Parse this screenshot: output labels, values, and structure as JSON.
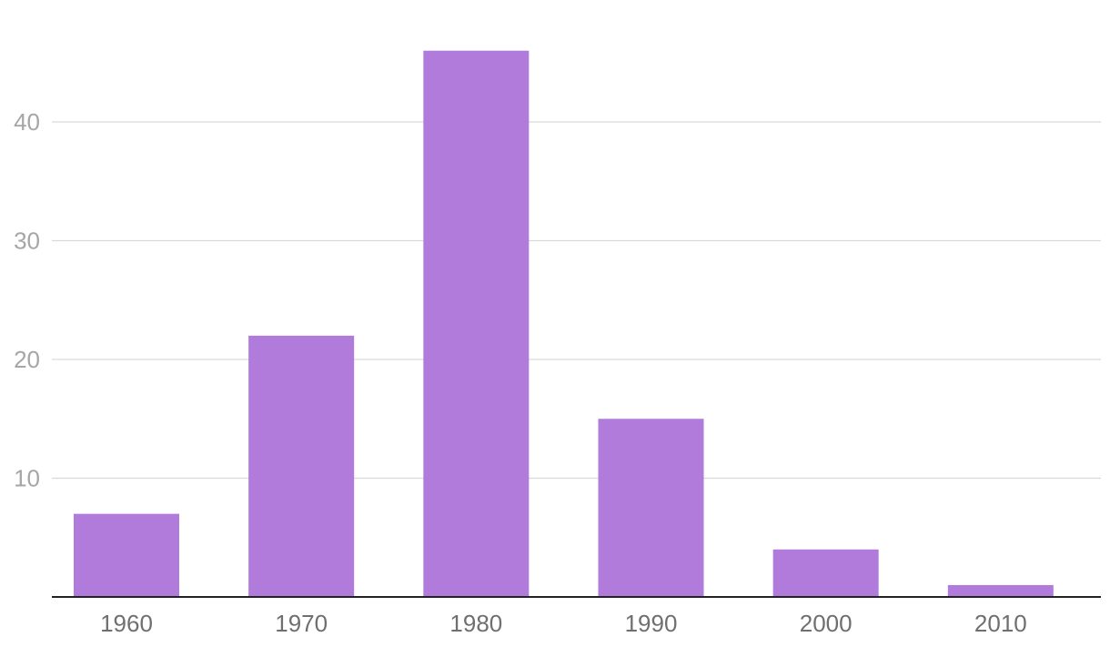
{
  "chart_data": {
    "type": "bar",
    "title": "",
    "xlabel": "",
    "ylabel": "",
    "categories": [
      "1960",
      "1970",
      "1980",
      "1990",
      "2000",
      "2010"
    ],
    "values": [
      7,
      22,
      46,
      15,
      4,
      1
    ],
    "ylim": [
      0,
      50
    ],
    "yticks": [
      10,
      20,
      30,
      40
    ],
    "grid": true,
    "legend": "none",
    "colors": {
      "bar": "#b07bdb",
      "grid": "#d9d9d9",
      "baseline": "#222222",
      "y_tick_text": "#a6a6a6",
      "x_tick_text": "#6f6f6f"
    }
  }
}
